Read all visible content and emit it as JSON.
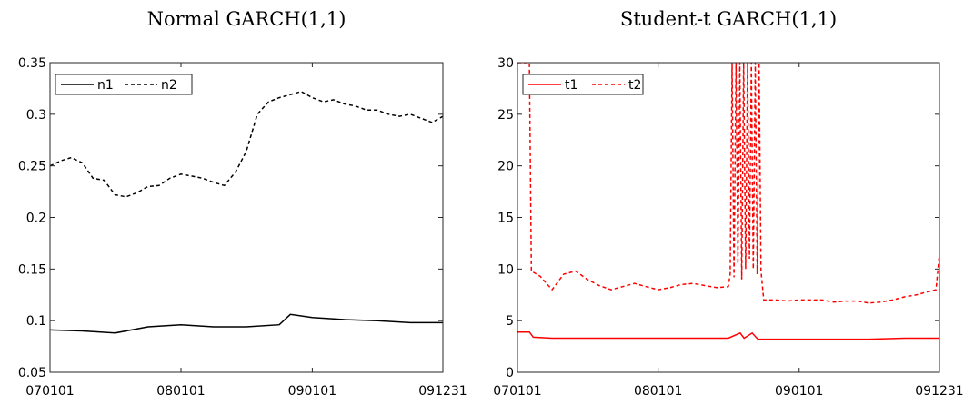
{
  "chart_data": [
    {
      "type": "line",
      "title": "Normal GARCH(1,1)",
      "xlabel": "",
      "ylabel": "",
      "xticks": [
        "070101",
        "080101",
        "090101",
        "091231"
      ],
      "ylim": [
        0.05,
        0.35
      ],
      "yticks": [
        "0.05",
        "0.1",
        "0.15",
        "0.2",
        "0.25",
        "0.3",
        "0.35"
      ],
      "legend_position": "top-left",
      "grid": false,
      "color": "#000000",
      "series": [
        {
          "name": "n1",
          "style": "solid",
          "x": [
            "070101",
            "070401",
            "070701",
            "071001",
            "080101",
            "080401",
            "080701",
            "081001",
            "081101",
            "090101",
            "090401",
            "090701",
            "091001",
            "091231"
          ],
          "y": [
            0.091,
            0.09,
            0.088,
            0.094,
            0.096,
            0.094,
            0.094,
            0.096,
            0.106,
            0.103,
            0.101,
            0.1,
            0.098,
            0.098
          ]
        },
        {
          "name": "n2",
          "style": "dashed",
          "x": [
            "070101",
            "070201",
            "070301",
            "070401",
            "070501",
            "070601",
            "070701",
            "070801",
            "070901",
            "071001",
            "071101",
            "071201",
            "080101",
            "080201",
            "080301",
            "080401",
            "080501",
            "080601",
            "080701",
            "080801",
            "080901",
            "081001",
            "081101",
            "081201",
            "090101",
            "090201",
            "090301",
            "090401",
            "090501",
            "090601",
            "090701",
            "090801",
            "090901",
            "091001",
            "091101",
            "091201",
            "091231"
          ],
          "y": [
            0.25,
            0.255,
            0.258,
            0.253,
            0.238,
            0.236,
            0.222,
            0.22,
            0.224,
            0.23,
            0.231,
            0.238,
            0.242,
            0.24,
            0.238,
            0.234,
            0.231,
            0.244,
            0.264,
            0.3,
            0.312,
            0.316,
            0.319,
            0.322,
            0.316,
            0.312,
            0.314,
            0.31,
            0.308,
            0.304,
            0.304,
            0.3,
            0.298,
            0.3,
            0.296,
            0.292,
            0.298
          ]
        }
      ]
    },
    {
      "type": "line",
      "title": "Student-t GARCH(1,1)",
      "xlabel": "",
      "ylabel": "",
      "xticks": [
        "070101",
        "080101",
        "090101",
        "091231"
      ],
      "ylim": [
        0,
        30
      ],
      "yticks": [
        "0",
        "5",
        "10",
        "15",
        "20",
        "25",
        "30"
      ],
      "legend_position": "top-left",
      "grid": false,
      "color": "#ff0000",
      "series": [
        {
          "name": "t1",
          "style": "solid",
          "x": [
            "070101",
            "070201",
            "070211",
            "070401",
            "070701",
            "071001",
            "080101",
            "080401",
            "080701",
            "080801",
            "080811",
            "080901",
            "080916",
            "081001",
            "090101",
            "090401",
            "090701",
            "091001",
            "091231"
          ],
          "y": [
            3.9,
            3.9,
            3.4,
            3.3,
            3.3,
            3.3,
            3.3,
            3.3,
            3.3,
            3.8,
            3.3,
            3.8,
            3.2,
            3.2,
            3.2,
            3.2,
            3.2,
            3.3,
            3.3
          ]
        },
        {
          "name": "t2",
          "style": "dashed",
          "x": [
            "070101",
            "070201",
            "070206",
            "070301",
            "070401",
            "070501",
            "070601",
            "070701",
            "070801",
            "070901",
            "071001",
            "071101",
            "071201",
            "080101",
            "080201",
            "080301",
            "080401",
            "080501",
            "080601",
            "080701",
            "080706",
            "080711",
            "080716",
            "080721",
            "080726",
            "080731",
            "080805",
            "080810",
            "080815",
            "080820",
            "080825",
            "080830",
            "080904",
            "080909",
            "080914",
            "080919",
            "080924",
            "081001",
            "081101",
            "081201",
            "090101",
            "090201",
            "090301",
            "090401",
            "090501",
            "090601",
            "090701",
            "090801",
            "090901",
            "091001",
            "091101",
            "091201",
            "091222",
            "091231"
          ],
          "y": [
            30,
            30,
            9.8,
            9.3,
            8.0,
            9.5,
            9.8,
            9.0,
            8.4,
            8.0,
            8.3,
            8.6,
            8.3,
            8.0,
            8.2,
            8.5,
            8.6,
            8.4,
            8.2,
            8.3,
            9.5,
            30,
            9.2,
            30,
            10.5,
            30,
            9.0,
            30,
            10.0,
            30,
            11.0,
            30,
            10.0,
            30,
            9.5,
            30,
            9.8,
            7.0,
            7.0,
            6.9,
            7.0,
            7.0,
            7.0,
            6.8,
            6.9,
            6.9,
            6.7,
            6.8,
            7.0,
            7.3,
            7.5,
            7.8,
            8.0,
            11.5
          ]
        }
      ]
    }
  ]
}
